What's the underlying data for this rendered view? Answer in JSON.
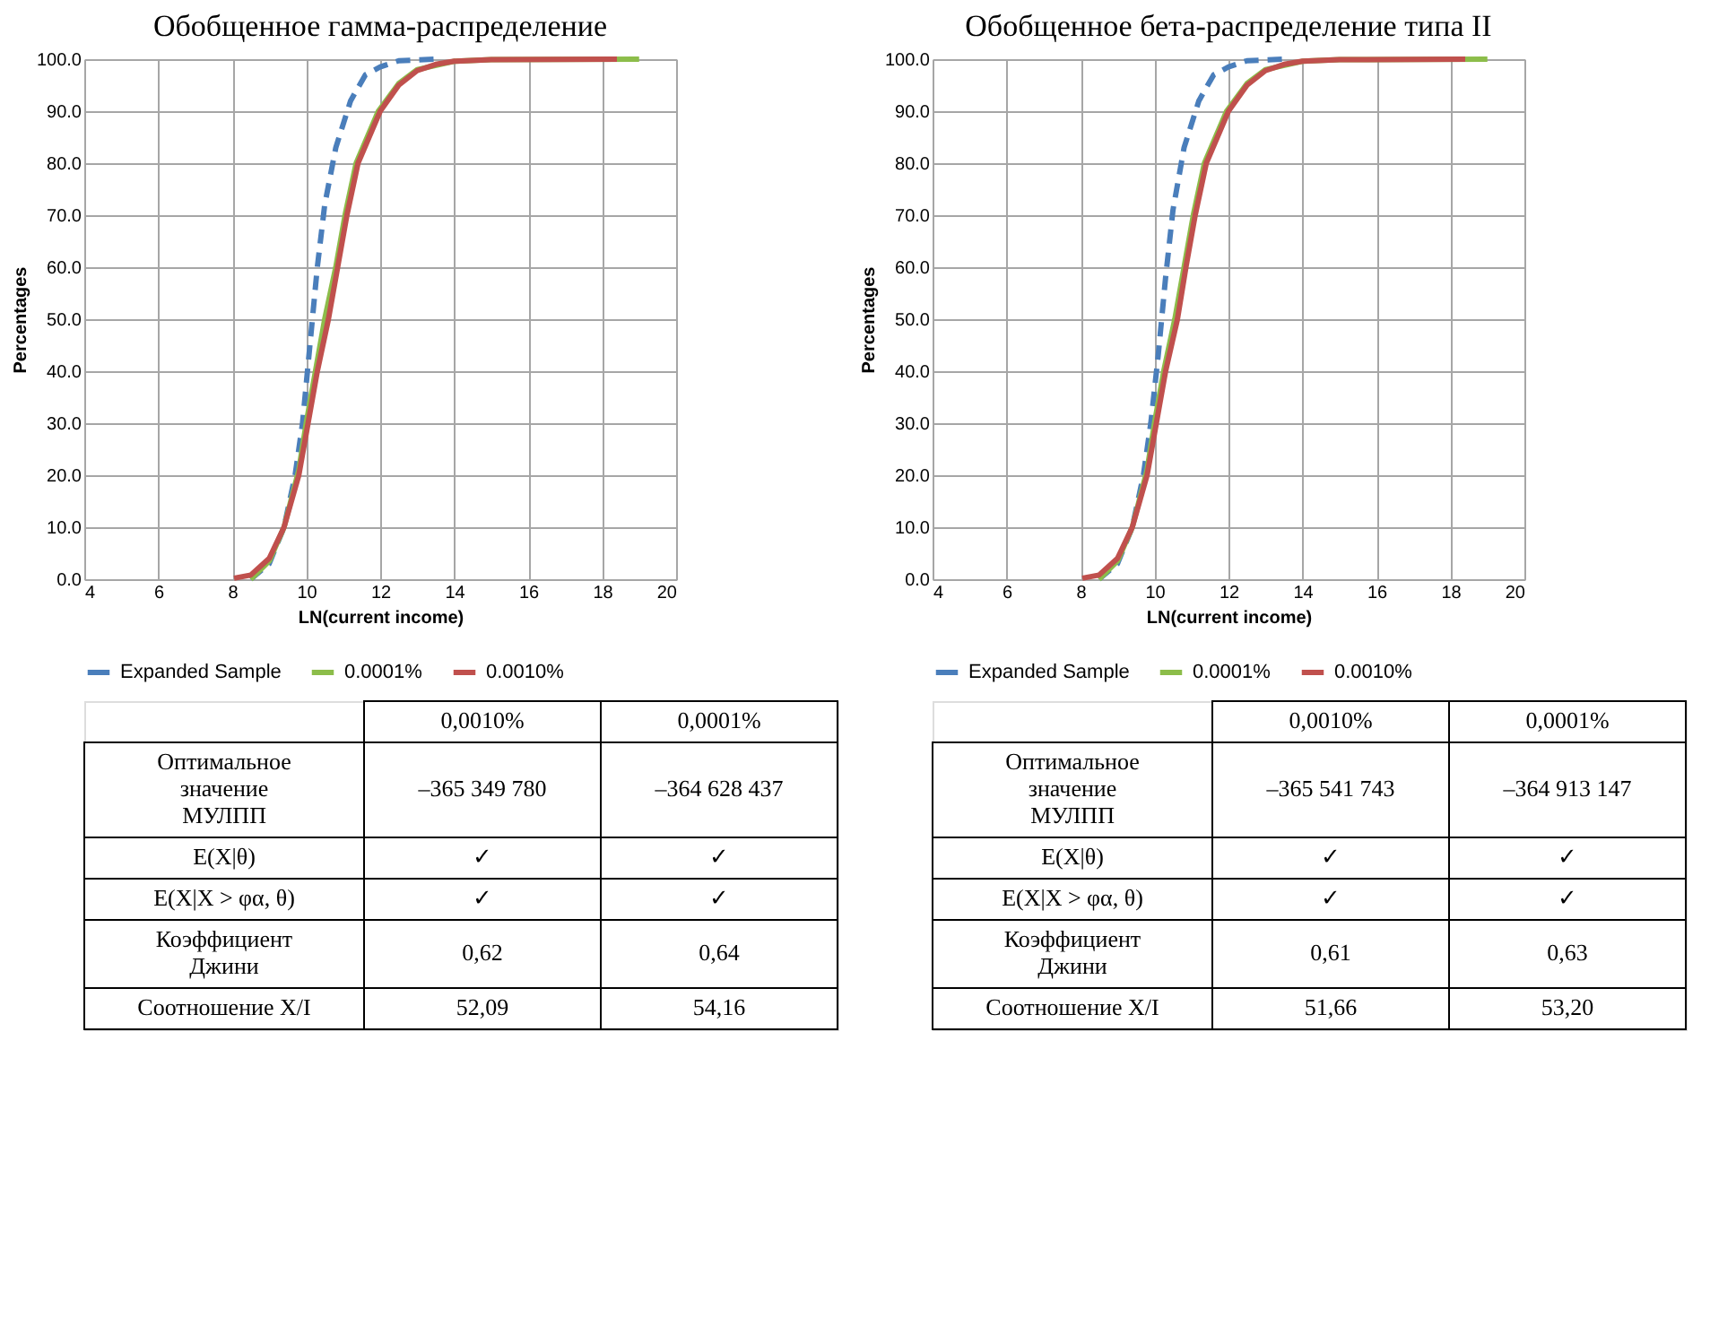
{
  "chart_data": [
    {
      "type": "line",
      "title": "Обобщенное гамма-распределение",
      "xlabel": "LN(current income)",
      "ylabel": "Percentages",
      "xlim": [
        4,
        20
      ],
      "xticks": [
        4,
        6,
        8,
        10,
        12,
        14,
        16,
        18,
        20
      ],
      "ylim": [
        0,
        100
      ],
      "yticks": [
        {
          "value": 0,
          "label": "0.0"
        },
        {
          "value": 10,
          "label": "10.0"
        },
        {
          "value": 20,
          "label": "20.0"
        },
        {
          "value": 30,
          "label": "30.0"
        },
        {
          "value": 40,
          "label": "40.0"
        },
        {
          "value": 50,
          "label": "50.0"
        },
        {
          "value": 60,
          "label": "60.0"
        },
        {
          "value": 70,
          "label": "70.0"
        },
        {
          "value": 80,
          "label": "80.0"
        },
        {
          "value": 90,
          "label": "90.0"
        },
        {
          "value": 100,
          "label": "100.0"
        }
      ],
      "grid": true,
      "legend": "bottom",
      "series": [
        {
          "name": "Expanded Sample",
          "color": "#4a7ebb",
          "line_style": "dashed",
          "x": [
            8.5,
            9.0,
            9.4,
            9.7,
            9.9,
            10.1,
            10.3,
            10.5,
            10.8,
            11.2,
            11.6,
            12.0,
            12.5,
            13.5
          ],
          "values": [
            0,
            3,
            10,
            20,
            30,
            45,
            60,
            72,
            83,
            92,
            97,
            98.5,
            99.7,
            100
          ]
        },
        {
          "name": "0.0001%",
          "color": "#8cbd4a",
          "line_style": "solid",
          "x": [
            8.5,
            9.0,
            9.4,
            9.8,
            10.0,
            10.25,
            10.5,
            10.8,
            11.05,
            11.35,
            11.95,
            12.5,
            13.0,
            14.0,
            15.0,
            19.0
          ],
          "values": [
            0,
            3.5,
            10,
            21,
            30,
            40,
            50,
            60,
            70,
            80,
            90,
            95.3,
            98,
            99.6,
            99.9,
            100
          ]
        },
        {
          "name": "0.0010%",
          "color": "#c0504d",
          "line_style": "solid",
          "x": [
            8.05,
            8.5,
            9.0,
            9.4,
            9.8,
            10.05,
            10.3,
            10.6,
            10.85,
            11.1,
            11.4,
            12.0,
            12.5,
            13.0,
            13.5,
            14.0,
            15.0,
            18.4
          ],
          "values": [
            0.2,
            0.8,
            4,
            10,
            20,
            30,
            40,
            50,
            60,
            70,
            80,
            90,
            95,
            97.8,
            99,
            99.6,
            99.9,
            100
          ]
        }
      ],
      "annotations": [
        "0,0010%",
        "0,0001%",
        "Оптимальное\nзначение\nМУЛПП",
        "–365 349 780",
        "–364 628 437",
        "E(X|θ)",
        "✓",
        "✓",
        "E(X|X > φα, θ)",
        "✓",
        "✓",
        "Коэффициент\nДжини",
        "0,62",
        "0,64",
        "Соотношение X/I",
        "52,09",
        "54,16"
      ]
    },
    {
      "type": "line",
      "title": "Обобщенное бета-распределение типа II",
      "xlabel": "LN(current income)",
      "ylabel": "Percentages",
      "xlim": [
        4,
        20
      ],
      "xticks": [
        4,
        6,
        8,
        10,
        12,
        14,
        16,
        18,
        20
      ],
      "ylim": [
        0,
        100
      ],
      "yticks": [
        {
          "value": 0,
          "label": "0.0"
        },
        {
          "value": 10,
          "label": "10.0"
        },
        {
          "value": 20,
          "label": "20.0"
        },
        {
          "value": 30,
          "label": "30.0"
        },
        {
          "value": 40,
          "label": "40.0"
        },
        {
          "value": 50,
          "label": "50.0"
        },
        {
          "value": 60,
          "label": "60.0"
        },
        {
          "value": 70,
          "label": "70.0"
        },
        {
          "value": 80,
          "label": "80.0"
        },
        {
          "value": 90,
          "label": "90.0"
        },
        {
          "value": 100,
          "label": "100.0"
        }
      ],
      "grid": true,
      "legend": "bottom",
      "series": [
        {
          "name": "Expanded Sample",
          "color": "#4a7ebb",
          "line_style": "dashed",
          "x": [
            8.5,
            9.0,
            9.4,
            9.7,
            9.9,
            10.1,
            10.3,
            10.5,
            10.8,
            11.2,
            11.6,
            12.0,
            12.5,
            13.5
          ],
          "values": [
            0,
            3,
            10,
            20,
            30,
            43,
            58,
            71,
            83,
            92,
            97,
            98.5,
            99.7,
            100
          ]
        },
        {
          "name": "0.0001%",
          "color": "#8cbd4a",
          "line_style": "solid",
          "x": [
            8.5,
            9.0,
            9.4,
            9.8,
            10.0,
            10.25,
            10.55,
            10.8,
            11.05,
            11.35,
            11.95,
            12.5,
            13.0,
            14.0,
            15.0,
            19.0
          ],
          "values": [
            0,
            3.5,
            10,
            21,
            30,
            40,
            50,
            60,
            70,
            80,
            90,
            95.3,
            98,
            99.6,
            99.9,
            100
          ]
        },
        {
          "name": "0.0010%",
          "color": "#c0504d",
          "line_style": "solid",
          "x": [
            8.05,
            8.5,
            9.0,
            9.4,
            9.8,
            10.05,
            10.3,
            10.62,
            10.85,
            11.1,
            11.4,
            12.0,
            12.5,
            13.0,
            13.5,
            14.0,
            15.0,
            18.4
          ],
          "values": [
            0.2,
            0.8,
            4,
            10,
            20,
            30,
            40,
            50,
            60,
            70,
            80,
            90,
            95,
            97.8,
            99,
            99.6,
            99.9,
            100
          ]
        }
      ],
      "annotations": [
        "0,0010%",
        "0,0001%",
        "Оптимальное\nзначение\nМУЛПП",
        "–365 541 743",
        "–364 913 147",
        "E(X|θ)",
        "✓",
        "✓",
        "E(X|X > φα, θ)",
        "✓",
        "✓",
        "Коэффициент\nДжини",
        "0,61",
        "0,63",
        "Соотношение X/I",
        "51,66",
        "53,20"
      ]
    }
  ]
}
